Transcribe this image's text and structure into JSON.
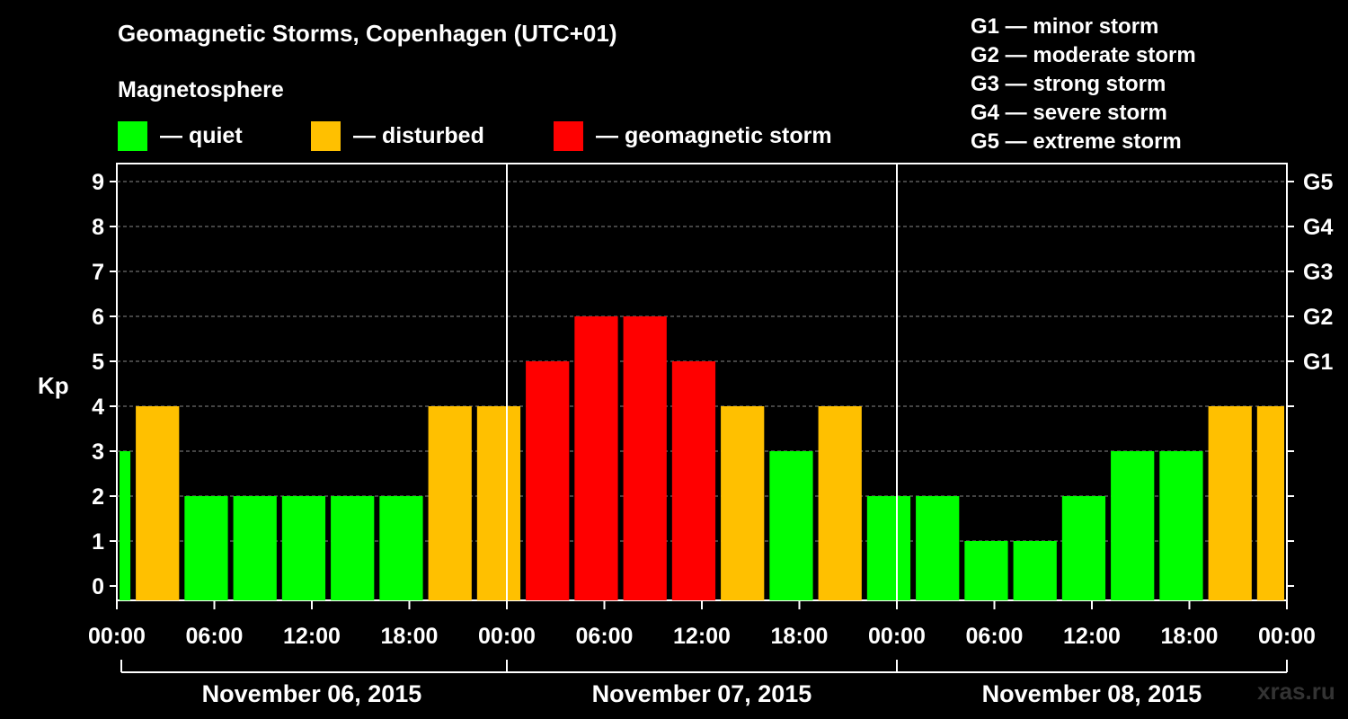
{
  "header": {
    "title": "Geomagnetic Storms, Copenhagen (UTC+01)",
    "subtitle": "Magnetosphere"
  },
  "legend": {
    "items": [
      {
        "label": "— quiet",
        "color": "#00ff00"
      },
      {
        "label": "— disturbed",
        "color": "#ffc000"
      },
      {
        "label": "— geomagnetic storm",
        "color": "#ff0000"
      }
    ]
  },
  "storm_levels": [
    {
      "code": "G1",
      "desc": "G1 — minor storm"
    },
    {
      "code": "G2",
      "desc": "G2 — moderate storm"
    },
    {
      "code": "G3",
      "desc": "G3 — strong storm"
    },
    {
      "code": "G4",
      "desc": "G4 — severe storm"
    },
    {
      "code": "G5",
      "desc": "G5 — extreme storm"
    }
  ],
  "watermark": "xras.ru",
  "chart_data": {
    "type": "bar",
    "ylabel": "Kp",
    "ylim": [
      0,
      9
    ],
    "yticks": [
      0,
      1,
      2,
      3,
      4,
      5,
      6,
      7,
      8,
      9
    ],
    "right_ticks": [
      {
        "value": 5,
        "label": "G1"
      },
      {
        "value": 6,
        "label": "G2"
      },
      {
        "value": 7,
        "label": "G3"
      },
      {
        "value": 8,
        "label": "G4"
      },
      {
        "value": 9,
        "label": "G5"
      }
    ],
    "grid": true,
    "xtick_labels": [
      "00:00",
      "06:00",
      "12:00",
      "18:00",
      "00:00",
      "06:00",
      "12:00",
      "18:00",
      "00:00",
      "06:00",
      "12:00",
      "18:00",
      "00:00"
    ],
    "days": [
      "November 06, 2015",
      "November 07, 2015",
      "November 08, 2015"
    ],
    "colors": {
      "quiet": "#00ff00",
      "disturbed": "#ffc000",
      "storm": "#ff0000"
    },
    "thresholds": {
      "disturbed": 4,
      "storm": 5
    },
    "x_start": "2015-11-06 00:00",
    "x_end": "2015-11-09 00:00",
    "bars": [
      {
        "start": "2015-11-06 00:00",
        "end": "2015-11-06 01:00",
        "kp": 3
      },
      {
        "start": "2015-11-06 01:00",
        "end": "2015-11-06 04:00",
        "kp": 4
      },
      {
        "start": "2015-11-06 04:00",
        "end": "2015-11-06 07:00",
        "kp": 2
      },
      {
        "start": "2015-11-06 07:00",
        "end": "2015-11-06 10:00",
        "kp": 2
      },
      {
        "start": "2015-11-06 10:00",
        "end": "2015-11-06 13:00",
        "kp": 2
      },
      {
        "start": "2015-11-06 13:00",
        "end": "2015-11-06 16:00",
        "kp": 2
      },
      {
        "start": "2015-11-06 16:00",
        "end": "2015-11-06 19:00",
        "kp": 2
      },
      {
        "start": "2015-11-06 19:00",
        "end": "2015-11-06 22:00",
        "kp": 4
      },
      {
        "start": "2015-11-06 22:00",
        "end": "2015-11-07 01:00",
        "kp": 4
      },
      {
        "start": "2015-11-07 01:00",
        "end": "2015-11-07 04:00",
        "kp": 5
      },
      {
        "start": "2015-11-07 04:00",
        "end": "2015-11-07 07:00",
        "kp": 6
      },
      {
        "start": "2015-11-07 07:00",
        "end": "2015-11-07 10:00",
        "kp": 6
      },
      {
        "start": "2015-11-07 10:00",
        "end": "2015-11-07 13:00",
        "kp": 5
      },
      {
        "start": "2015-11-07 13:00",
        "end": "2015-11-07 16:00",
        "kp": 4
      },
      {
        "start": "2015-11-07 16:00",
        "end": "2015-11-07 19:00",
        "kp": 3
      },
      {
        "start": "2015-11-07 19:00",
        "end": "2015-11-07 22:00",
        "kp": 4
      },
      {
        "start": "2015-11-07 22:00",
        "end": "2015-11-08 01:00",
        "kp": 2
      },
      {
        "start": "2015-11-08 01:00",
        "end": "2015-11-08 04:00",
        "kp": 2
      },
      {
        "start": "2015-11-08 04:00",
        "end": "2015-11-08 07:00",
        "kp": 1
      },
      {
        "start": "2015-11-08 07:00",
        "end": "2015-11-08 10:00",
        "kp": 1
      },
      {
        "start": "2015-11-08 10:00",
        "end": "2015-11-08 13:00",
        "kp": 2
      },
      {
        "start": "2015-11-08 13:00",
        "end": "2015-11-08 16:00",
        "kp": 3
      },
      {
        "start": "2015-11-08 16:00",
        "end": "2015-11-08 19:00",
        "kp": 3
      },
      {
        "start": "2015-11-08 19:00",
        "end": "2015-11-08 22:00",
        "kp": 4
      },
      {
        "start": "2015-11-08 22:00",
        "end": "2015-11-09 00:00",
        "kp": 4
      }
    ]
  }
}
